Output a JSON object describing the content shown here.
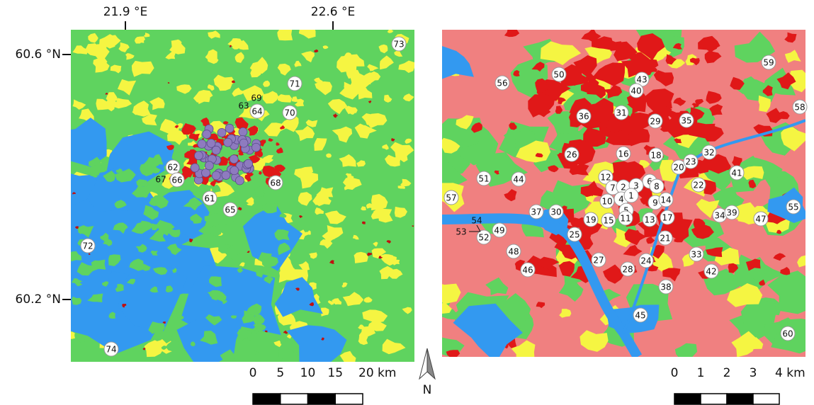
{
  "left_map": {
    "axis_labels": {
      "top": [
        "21.9 °E",
        "22.6 °E"
      ],
      "left": [
        "60.6 °N",
        "60.2 °N"
      ]
    },
    "sites": [
      "73",
      "71",
      "69",
      "63",
      "64",
      "70",
      "62",
      "67",
      "66",
      "68",
      "61",
      "65",
      "72",
      "74"
    ],
    "scale_bar": [
      "0",
      "5",
      "10",
      "15",
      "20 km"
    ]
  },
  "north_arrow": "N",
  "right_map": {
    "sites": [
      "59",
      "50",
      "43",
      "40",
      "56",
      "58",
      "31",
      "36",
      "29",
      "35",
      "26",
      "16",
      "18",
      "32",
      "20",
      "23",
      "41",
      "51",
      "44",
      "12",
      "6",
      "8",
      "7",
      "2",
      "3",
      "22",
      "57",
      "4",
      "1",
      "10",
      "9",
      "14",
      "5",
      "55",
      "37",
      "30",
      "19",
      "15",
      "11",
      "13",
      "17",
      "34",
      "39",
      "47",
      "54",
      "53",
      "49",
      "52",
      "25",
      "21",
      "48",
      "33",
      "27",
      "24",
      "28",
      "42",
      "46",
      "38",
      "45",
      "60"
    ],
    "scale_bar": [
      "0",
      "1",
      "2",
      "3",
      "4 km"
    ]
  }
}
